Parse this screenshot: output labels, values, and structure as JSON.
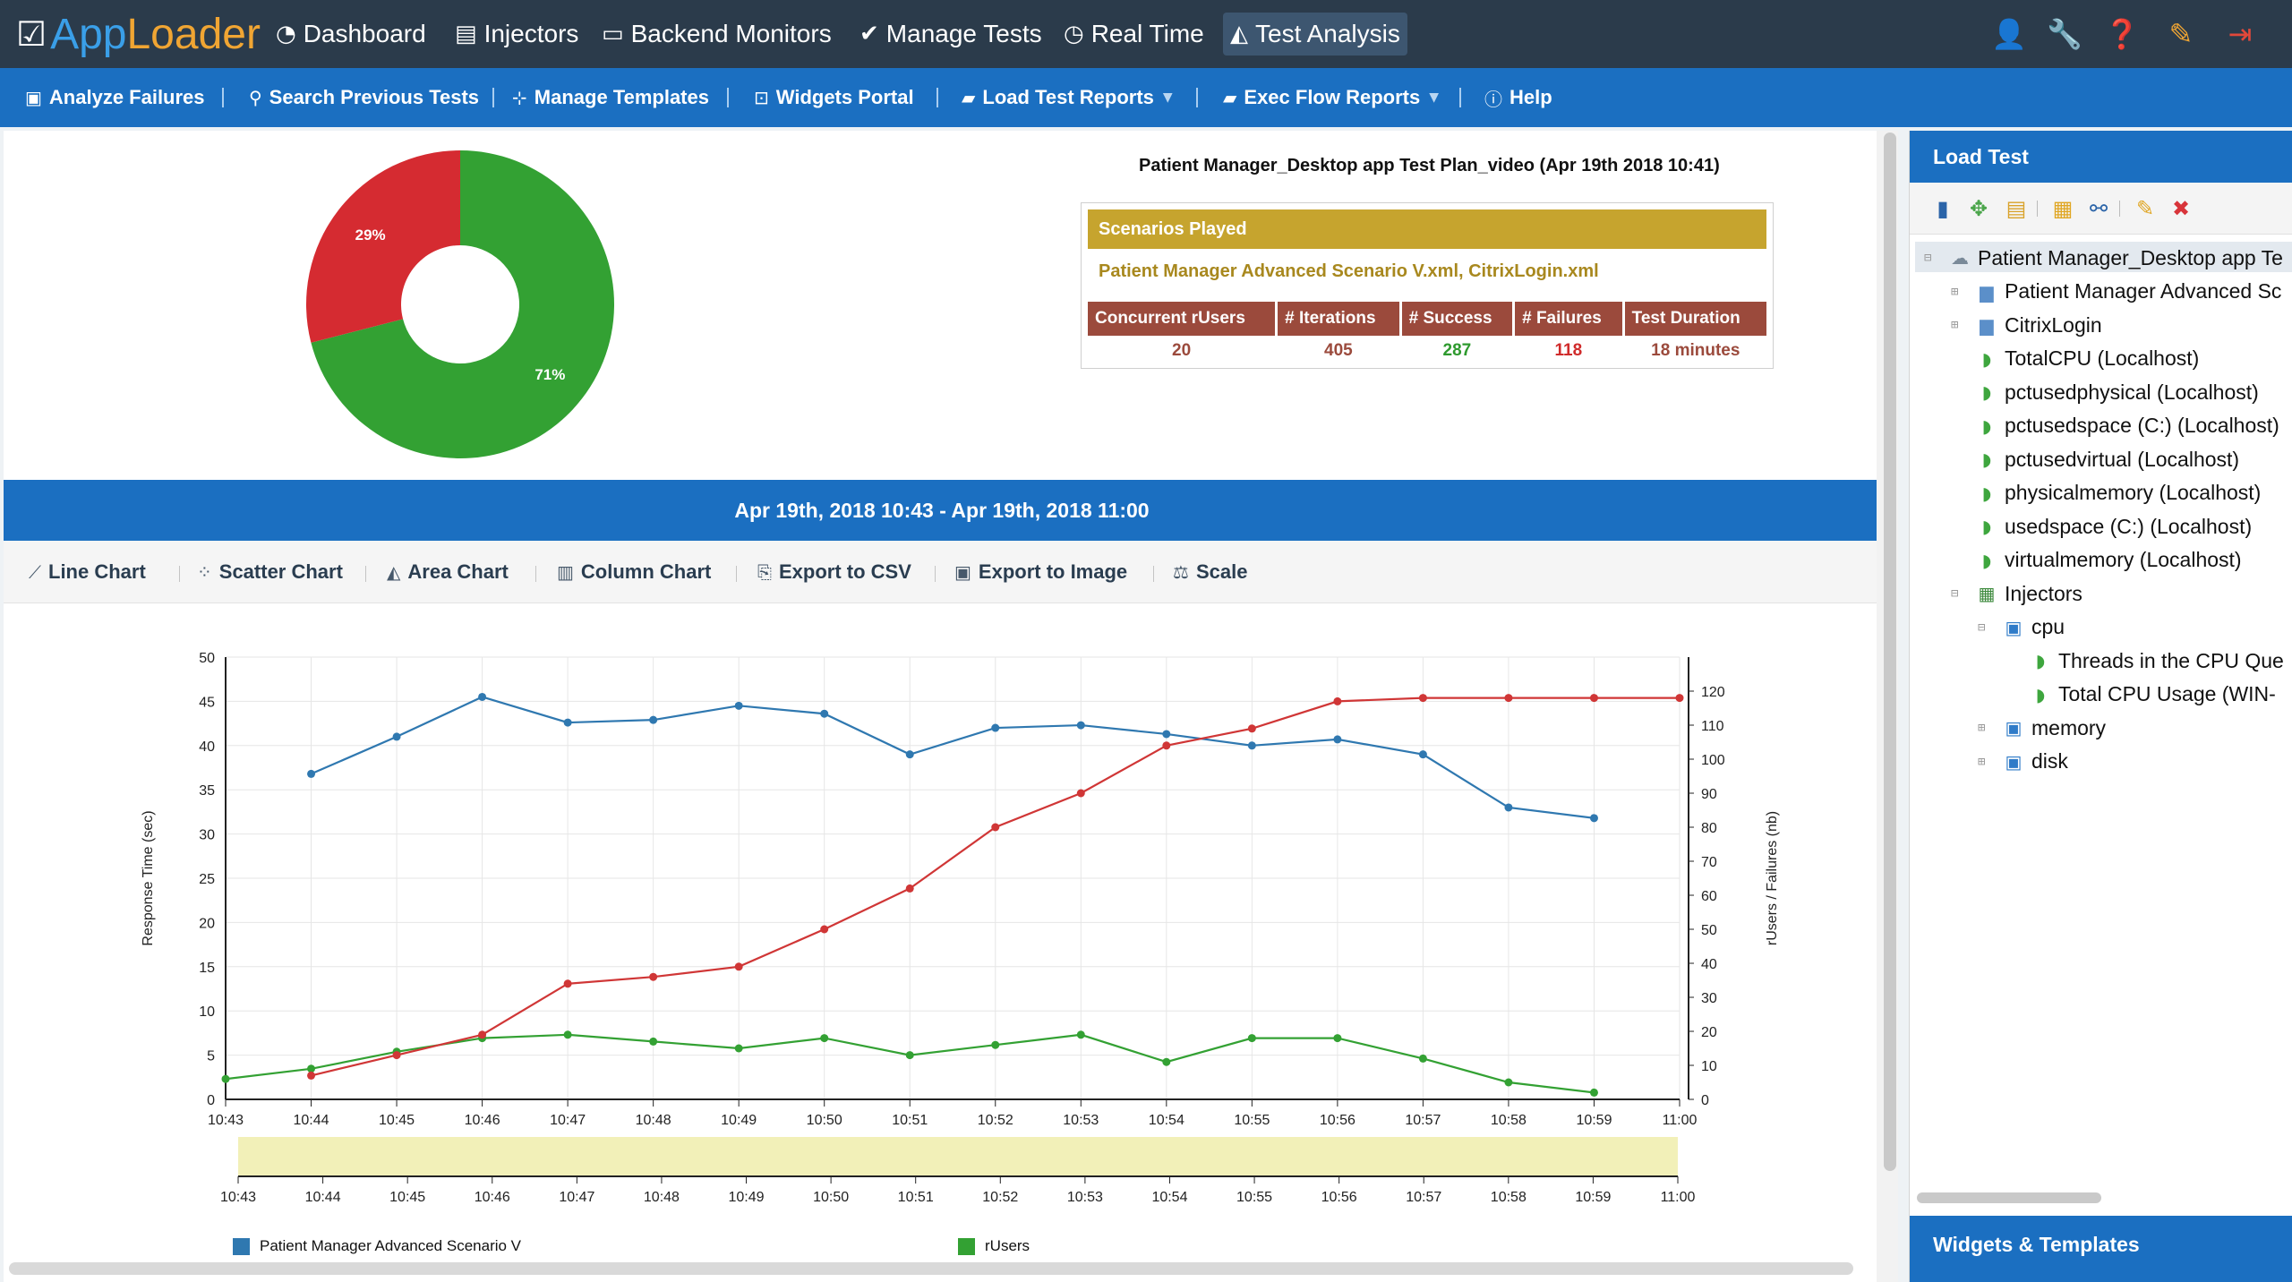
{
  "app": {
    "name_a": "App",
    "name_b": "Loader"
  },
  "topnav": {
    "items": [
      {
        "label": "Dashboard"
      },
      {
        "label": "Injectors"
      },
      {
        "label": "Backend Monitors"
      },
      {
        "label": "Manage Tests"
      },
      {
        "label": "Real Time"
      },
      {
        "label": "Test Analysis"
      }
    ],
    "active": "Test Analysis"
  },
  "subnav": {
    "items": [
      {
        "label": "Analyze Failures"
      },
      {
        "label": "Search Previous Tests"
      },
      {
        "label": "Manage Templates"
      },
      {
        "label": "Widgets Portal"
      },
      {
        "label": "Load Test Reports"
      },
      {
        "label": "Exec Flow Reports"
      },
      {
        "label": "Help"
      }
    ]
  },
  "summary": {
    "plan_title": "Patient Manager_Desktop app Test Plan_video (Apr 19th 2018 10:41)",
    "scenarios_header": "Scenarios Played",
    "scenario_files": "Patient Manager Advanced Scenario V.xml, CitrixLogin.xml",
    "metrics_headers": [
      "Concurrent rUsers",
      "# Iterations",
      "# Success",
      "# Failures",
      "Test Duration"
    ],
    "metrics_values": [
      "20",
      "405",
      "287",
      "118",
      "18 minutes"
    ],
    "colors": {
      "header": "#c6a42e",
      "metric_head": "#9b4a3c",
      "success": "#2e9a2e",
      "failure": "#d02b2b",
      "neutral": "#9b4a3c"
    }
  },
  "pie": {
    "slices": [
      {
        "label": "71%",
        "value": 71,
        "color": "#33a133"
      },
      {
        "label": "29%",
        "value": 29,
        "color": "#d52b31"
      }
    ]
  },
  "range_label": "Apr 19th, 2018 10:43 - Apr 19th, 2018 11:00",
  "chart_toolbar": {
    "items": [
      {
        "label": "Line Chart"
      },
      {
        "label": "Scatter Chart"
      },
      {
        "label": "Area Chart"
      },
      {
        "label": "Column Chart"
      },
      {
        "label": "Export to CSV"
      },
      {
        "label": "Export to Image"
      },
      {
        "label": "Scale"
      }
    ]
  },
  "chart_data": {
    "type": "line",
    "x": [
      "10:43",
      "10:44",
      "10:45",
      "10:46",
      "10:47",
      "10:48",
      "10:49",
      "10:50",
      "10:51",
      "10:52",
      "10:53",
      "10:54",
      "10:55",
      "10:56",
      "10:57",
      "10:58",
      "10:59",
      "11:00"
    ],
    "ylabel": "Response Time (sec)",
    "y2label": "rUsers / Failures (nb)",
    "ylim": [
      0,
      50
    ],
    "y2lim": [
      0,
      130
    ],
    "yticks": [
      "0",
      "5",
      "10",
      "15",
      "20",
      "25",
      "30",
      "35",
      "40",
      "45",
      "50"
    ],
    "y2ticks": [
      "0",
      "10",
      "20",
      "30",
      "40",
      "50",
      "60",
      "70",
      "80",
      "90",
      "100",
      "110",
      "120"
    ],
    "grid": true,
    "legend_position": "bottom",
    "series": [
      {
        "name": "Patient Manager Advanced Scenario V",
        "axis": "left",
        "color": "#2f78b0",
        "values": [
          null,
          36.8,
          41,
          45.5,
          42.6,
          42.9,
          44.5,
          43.6,
          39,
          42,
          42.3,
          41.3,
          40,
          40.7,
          39,
          33,
          31.8,
          null
        ]
      },
      {
        "name": "rUsers",
        "axis": "right",
        "color": "#33a133",
        "values": [
          6,
          9,
          14,
          18,
          19,
          17,
          15,
          18,
          13,
          16,
          19,
          11,
          18,
          18,
          12,
          5,
          2,
          null
        ]
      },
      {
        "name": "",
        "axis": "right",
        "color": "#d03636",
        "values": [
          null,
          7,
          13,
          19,
          34,
          36,
          39,
          50,
          62,
          80,
          90,
          104,
          109,
          117,
          118,
          118,
          118,
          118
        ]
      }
    ]
  },
  "right_panel": {
    "title": "Load Test",
    "footer": "Widgets & Templates",
    "tree": [
      {
        "label": "Patient Manager_Desktop app Te",
        "level": 0,
        "icon": "cloud-icon",
        "expander": "−"
      },
      {
        "label": "Patient Manager Advanced Sc",
        "level": 1,
        "icon": "folder-icon",
        "expander": "+"
      },
      {
        "label": "CitrixLogin",
        "level": 1,
        "icon": "folder-icon",
        "expander": "+"
      },
      {
        "label": "TotalCPU (Localhost)",
        "level": 1,
        "icon": "leaf-icon",
        "expander": ""
      },
      {
        "label": "pctusedphysical (Localhost)",
        "level": 1,
        "icon": "leaf-icon",
        "expander": ""
      },
      {
        "label": "pctusedspace (C:) (Localhost)",
        "level": 1,
        "icon": "leaf-icon",
        "expander": ""
      },
      {
        "label": "pctusedvirtual (Localhost)",
        "level": 1,
        "icon": "leaf-icon",
        "expander": ""
      },
      {
        "label": "physicalmemory (Localhost)",
        "level": 1,
        "icon": "leaf-icon",
        "expander": ""
      },
      {
        "label": "usedspace (C:) (Localhost)",
        "level": 1,
        "icon": "leaf-icon",
        "expander": ""
      },
      {
        "label": "virtualmemory (Localhost)",
        "level": 1,
        "icon": "leaf-icon",
        "expander": ""
      },
      {
        "label": "Injectors",
        "level": 1,
        "icon": "injector-icon",
        "expander": "−"
      },
      {
        "label": "cpu",
        "level": 2,
        "icon": "box-icon",
        "expander": "−"
      },
      {
        "label": "Threads in the CPU Que",
        "level": 3,
        "icon": "leaf-icon",
        "expander": ""
      },
      {
        "label": "Total CPU Usage (WIN-",
        "level": 3,
        "icon": "leaf-icon",
        "expander": ""
      },
      {
        "label": "memory",
        "level": 2,
        "icon": "box-icon",
        "expander": "+"
      },
      {
        "label": "disk",
        "level": 2,
        "icon": "box-icon",
        "expander": "+"
      }
    ]
  }
}
